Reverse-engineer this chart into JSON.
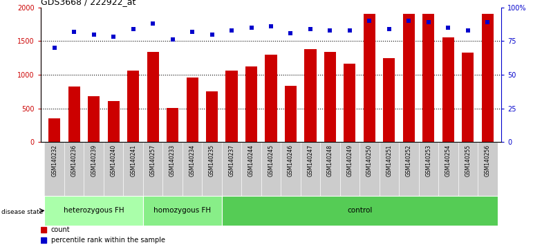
{
  "title": "GDS3668 / 222922_at",
  "categories": [
    "GSM140232",
    "GSM140236",
    "GSM140239",
    "GSM140240",
    "GSM140241",
    "GSM140257",
    "GSM140233",
    "GSM140234",
    "GSM140235",
    "GSM140237",
    "GSM140244",
    "GSM140245",
    "GSM140246",
    "GSM140247",
    "GSM140248",
    "GSM140249",
    "GSM140250",
    "GSM140251",
    "GSM140252",
    "GSM140253",
    "GSM140254",
    "GSM140255",
    "GSM140256"
  ],
  "counts": [
    350,
    820,
    680,
    610,
    1060,
    1340,
    510,
    960,
    750,
    1060,
    1120,
    1300,
    840,
    1380,
    1340,
    1160,
    1900,
    1250,
    1900,
    1900,
    1550,
    1330,
    1900
  ],
  "percentiles": [
    70,
    82,
    80,
    78,
    84,
    88,
    76,
    82,
    80,
    83,
    85,
    86,
    81,
    84,
    83,
    83,
    90,
    84,
    90,
    89,
    85,
    83,
    89
  ],
  "bar_color": "#cc0000",
  "dot_color": "#0000cc",
  "ylim_left": [
    0,
    2000
  ],
  "ylim_right": [
    0,
    100
  ],
  "yticks_left": [
    0,
    500,
    1000,
    1500,
    2000
  ],
  "yticks_right": [
    0,
    25,
    50,
    75,
    100
  ],
  "ytick_labels_right": [
    "0",
    "25",
    "50",
    "75",
    "100%"
  ],
  "groups": [
    {
      "label": "heterozygous FH",
      "start": 0,
      "end": 5,
      "color": "#aaffaa"
    },
    {
      "label": "homozygous FH",
      "start": 5,
      "end": 9,
      "color": "#88ee88"
    },
    {
      "label": "control",
      "start": 9,
      "end": 23,
      "color": "#55cc55"
    }
  ],
  "background_color": "#ffffff",
  "bar_color_legend": "#cc0000",
  "dot_color_legend": "#0000cc",
  "tick_area_color": "#cccccc",
  "plot_bg": "#ffffff"
}
